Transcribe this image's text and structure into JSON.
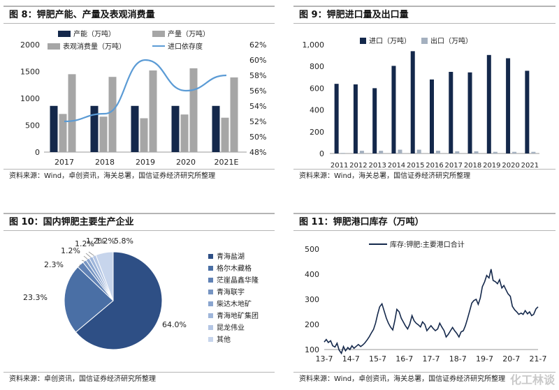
{
  "colors": {
    "navy": "#14284b",
    "gray": "#a6a6a6",
    "silver": "#a4b0bf",
    "line": "#5b9bd5",
    "pie_main": "#2e4f85",
    "pie_2": "#4a6fa5"
  },
  "figures": [
    {
      "title": "图 8：钾肥产能、产量及表观消费量",
      "source": "资料来源：Wind，卓创资讯，海关总署，国信证券经济研究所整理"
    },
    {
      "title": "图 9：钾肥进口量及出口量",
      "source": "资料来源：Wind，海关总署，国信证券经济研究所整理"
    },
    {
      "title": "图 10：国内钾肥主要生产企业",
      "source": "资料来源：卓创资讯，国信证券经济研究所整理"
    },
    {
      "title": "图 11：钾肥港口库存（万吨）",
      "source": "资料来源：Wind，卓创资讯，海关总署，国信证券经济研究所整理"
    }
  ],
  "watermark": "化工林谈",
  "chart_data": [
    {
      "type": "bar",
      "categories": [
        "2017",
        "2018",
        "2019",
        "2020",
        "2021E"
      ],
      "series": [
        {
          "name": "产能（万吨）",
          "values": [
            860,
            860,
            860,
            860,
            860
          ]
        },
        {
          "name": "产量（万吨）",
          "values": [
            710,
            660,
            630,
            700,
            640
          ]
        },
        {
          "name": "表观消费量（万吨）",
          "values": [
            1450,
            1400,
            1520,
            1560,
            1390
          ]
        },
        {
          "name": "进口依存度",
          "axis": "right",
          "line": true,
          "values": [
            0.52,
            0.53,
            0.6,
            0.56,
            0.58
          ]
        }
      ],
      "ylim": [
        0,
        2000
      ],
      "yticks": [
        "0",
        "500",
        "1000",
        "1500",
        "2000"
      ],
      "y2lim": [
        0.48,
        0.62
      ],
      "y2ticks": [
        "48%",
        "50%",
        "52%",
        "54%",
        "56%",
        "58%",
        "60%",
        "62%"
      ],
      "legend": "top"
    },
    {
      "type": "bar",
      "categories": [
        "2011",
        "2012",
        "2013",
        "2014",
        "2015",
        "2016",
        "2017",
        "2018",
        "2019",
        "2020",
        "2021"
      ],
      "series": [
        {
          "name": "进口（万吨）",
          "values": [
            640,
            635,
            600,
            805,
            940,
            680,
            750,
            745,
            905,
            875,
            760
          ]
        },
        {
          "name": "出口（万吨）",
          "values": [
            5,
            25,
            25,
            35,
            35,
            25,
            20,
            20,
            15,
            15,
            15
          ]
        }
      ],
      "ylim": [
        0,
        1000
      ],
      "yticks": [
        "0",
        "200",
        "400",
        "600",
        "800",
        "1,000"
      ],
      "legend": "top"
    },
    {
      "type": "pie",
      "labels": [
        "青海盐湖",
        "格尔木藏格",
        "茫崖晶鑫华隆",
        "青海联宇",
        "柴达木地矿",
        "青海地矿集团",
        "昆龙伟业",
        "其他"
      ],
      "values": [
        64.0,
        23.3,
        2.3,
        1.2,
        1.2,
        1.2,
        1.2,
        5.8
      ],
      "value_labels": [
        "64.0%",
        "23.3%",
        "2.3%",
        "1.2%",
        "1.2%",
        "1.2%",
        "1.2%",
        "5.8%"
      ],
      "colors": [
        "#2e4f85",
        "#4a6fa5",
        "#5f81b5",
        "#7694c2",
        "#8aa5cf",
        "#9fb6da",
        "#b4c6e4",
        "#c7d5ec"
      ],
      "legend": "right"
    },
    {
      "type": "line",
      "series": [
        {
          "name": "库存:钾肥:主要港口合计"
        }
      ],
      "x_ticks": [
        "13-7",
        "14-7",
        "15-7",
        "16-7",
        "17-7",
        "18-7",
        "19-7",
        "20-7",
        "21-7"
      ],
      "x": [
        2013.5,
        2013.58,
        2013.66,
        2013.75,
        2013.83,
        2013.92,
        2014.0,
        2014.08,
        2014.17,
        2014.25,
        2014.33,
        2014.42,
        2014.5,
        2014.58,
        2014.66,
        2014.75,
        2014.83,
        2014.92,
        2015.0,
        2015.08,
        2015.17,
        2015.25,
        2015.33,
        2015.42,
        2015.5,
        2015.58,
        2015.66,
        2015.75,
        2015.83,
        2015.92,
        2016.0,
        2016.08,
        2016.17,
        2016.25,
        2016.33,
        2016.42,
        2016.5,
        2016.58,
        2016.66,
        2016.75,
        2016.83,
        2016.92,
        2017.0,
        2017.08,
        2017.17,
        2017.25,
        2017.33,
        2017.42,
        2017.5,
        2017.58,
        2017.66,
        2017.75,
        2017.83,
        2017.92,
        2018.0,
        2018.08,
        2018.17,
        2018.25,
        2018.33,
        2018.42,
        2018.5,
        2018.58,
        2018.66,
        2018.75,
        2018.83,
        2018.92,
        2019.0,
        2019.08,
        2019.17,
        2019.25,
        2019.33,
        2019.42,
        2019.5,
        2019.58,
        2019.66,
        2019.75,
        2019.83,
        2019.92,
        2020.0,
        2020.08,
        2020.17,
        2020.25,
        2020.33,
        2020.42,
        2020.5,
        2020.58,
        2020.66,
        2020.75,
        2020.83,
        2020.92,
        2021.0,
        2021.08,
        2021.17,
        2021.25,
        2021.33,
        2021.42,
        2021.5,
        2021.58,
        2021.66,
        2021.75,
        2021.83
      ],
      "values": [
        130,
        140,
        128,
        135,
        115,
        110,
        125,
        98,
        85,
        112,
        95,
        108,
        100,
        115,
        105,
        113,
        120,
        112,
        118,
        126,
        138,
        150,
        165,
        180,
        205,
        240,
        270,
        282,
        255,
        225,
        205,
        190,
        178,
        215,
        260,
        250,
        225,
        210,
        195,
        182,
        200,
        235,
        215,
        205,
        198,
        190,
        210,
        200,
        175,
        185,
        195,
        183,
        175,
        182,
        205,
        190,
        175,
        150,
        160,
        175,
        188,
        175,
        165,
        150,
        170,
        175,
        195,
        222,
        255,
        285,
        295,
        300,
        280,
        305,
        350,
        370,
        395,
        385,
        420,
        375,
        370,
        362,
        378,
        345,
        355,
        338,
        322,
        312,
        272,
        258,
        250,
        240,
        245,
        240,
        255,
        242,
        250,
        235,
        240,
        262,
        270
      ],
      "ylim": [
        100,
        500
      ],
      "yticks": [
        "100",
        "200",
        "300",
        "400",
        "500"
      ],
      "legend": "top"
    }
  ]
}
